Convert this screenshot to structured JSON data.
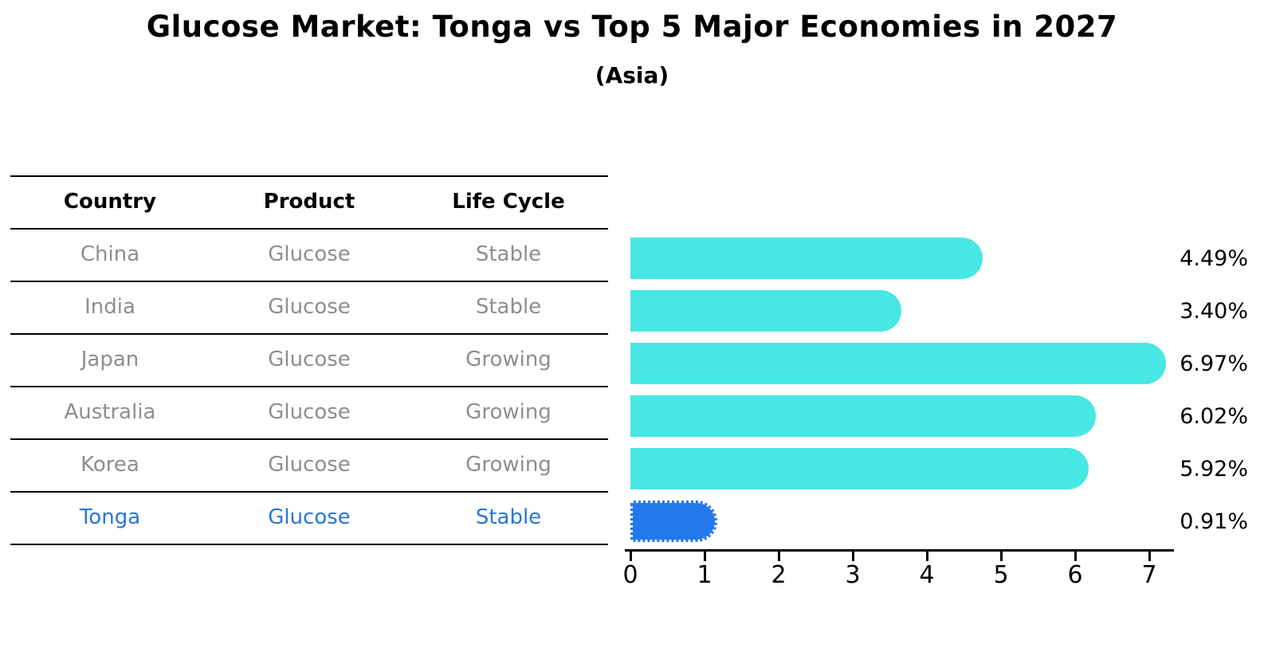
{
  "title": "Glucose Market: Tonga vs Top 5 Major Economies in 2027",
  "subtitle": "(Asia)",
  "table": {
    "headers": [
      "Country",
      "Product",
      "Life Cycle"
    ],
    "rows": [
      {
        "country": "China",
        "product": "Glucose",
        "life_cycle": "Stable",
        "highlighted": false
      },
      {
        "country": "India",
        "product": "Glucose",
        "life_cycle": "Stable",
        "highlighted": false
      },
      {
        "country": "Japan",
        "product": "Glucose",
        "life_cycle": "Growing",
        "highlighted": false
      },
      {
        "country": "Australia",
        "product": "Glucose",
        "life_cycle": "Growing",
        "highlighted": false
      },
      {
        "country": "Korea",
        "product": "Glucose",
        "life_cycle": "Growing",
        "highlighted": false
      },
      {
        "country": "Tonga",
        "product": "Glucose",
        "life_cycle": "Stable",
        "highlighted": true
      }
    ]
  },
  "chart_data": {
    "type": "bar",
    "orientation": "horizontal",
    "title": "Glucose Market: Tonga vs Top 5 Major Economies in 2027",
    "subtitle": "(Asia)",
    "categories": [
      "China",
      "India",
      "Japan",
      "Australia",
      "Korea",
      "Tonga"
    ],
    "values": [
      4.49,
      3.4,
      6.97,
      6.02,
      5.92,
      0.91
    ],
    "value_labels": [
      "4.49%",
      "3.40%",
      "6.97%",
      "6.02%",
      "5.92%",
      "0.91%"
    ],
    "highlighted_category": "Tonga",
    "x_ticks": [
      0,
      1,
      2,
      3,
      4,
      5,
      6,
      7
    ],
    "xlim": [
      0,
      7.4
    ],
    "grid": false,
    "legend": false
  },
  "colors": {
    "bar_default": "#47e7e3",
    "bar_highlight": "#2378eb",
    "text_highlight": "#2577dc",
    "text_muted": "#8e8e8e",
    "axis": "#000000"
  }
}
